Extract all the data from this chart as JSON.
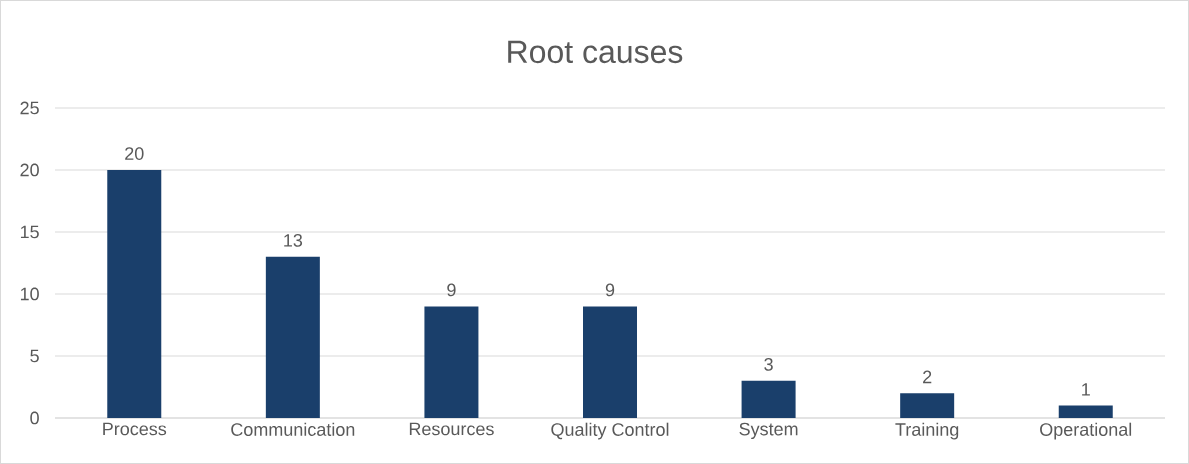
{
  "chart_data": {
    "type": "bar",
    "title": "Root causes",
    "categories": [
      "Process",
      "Communication",
      "Resources",
      "Quality Control",
      "System",
      "Training",
      "Operational"
    ],
    "values": [
      20,
      13,
      9,
      9,
      3,
      2,
      1
    ],
    "color": "#1a3f6b",
    "ylim": [
      0,
      25
    ],
    "yticks": [
      0,
      5,
      10,
      15,
      20,
      25
    ],
    "grid": "y",
    "data_labels": true
  }
}
